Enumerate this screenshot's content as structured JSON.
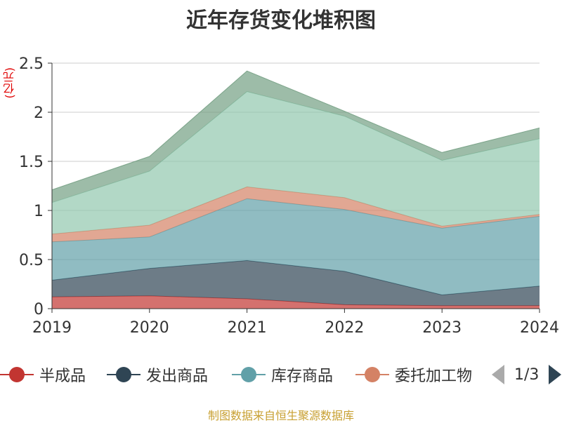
{
  "title": "近年存货变化堆积图",
  "unit": "(亿元)",
  "source": "制图数据来自恒生聚源数据库",
  "legend": {
    "items": [
      {
        "label": "半成品",
        "color": "#c23531"
      },
      {
        "label": "发出商品",
        "color": "#2f4554"
      },
      {
        "label": "库存商品",
        "color": "#61a0a8"
      },
      {
        "label": "委托加工物",
        "color": "#d48265"
      }
    ],
    "pager": "1/3"
  },
  "chart_data": {
    "type": "area",
    "stacked": true,
    "x": [
      "2019",
      "2020",
      "2021",
      "2022",
      "2023",
      "2024"
    ],
    "ylim": [
      0,
      2.5
    ],
    "yticks": [
      "0",
      "0.5",
      "1",
      "1.5",
      "2",
      "2.5"
    ],
    "grid": true,
    "series": [
      {
        "name": "半成品",
        "color": "#c23531",
        "values": [
          0.12,
          0.13,
          0.1,
          0.04,
          0.03,
          0.03
        ]
      },
      {
        "name": "发出商品",
        "color": "#2f4554",
        "values": [
          0.17,
          0.28,
          0.39,
          0.34,
          0.11,
          0.2
        ]
      },
      {
        "name": "库存商品",
        "color": "#61a0a8",
        "values": [
          0.39,
          0.32,
          0.63,
          0.63,
          0.68,
          0.71
        ]
      },
      {
        "color": "#d48265",
        "values": [
          0.08,
          0.12,
          0.12,
          0.12,
          0.02,
          0.02
        ]
      },
      {
        "color": "#91c7ae",
        "values": [
          0.32,
          0.55,
          0.97,
          0.83,
          0.67,
          0.77
        ]
      },
      {
        "color": "#749f83",
        "values": [
          0.13,
          0.15,
          0.21,
          0.05,
          0.08,
          0.11
        ]
      }
    ]
  }
}
